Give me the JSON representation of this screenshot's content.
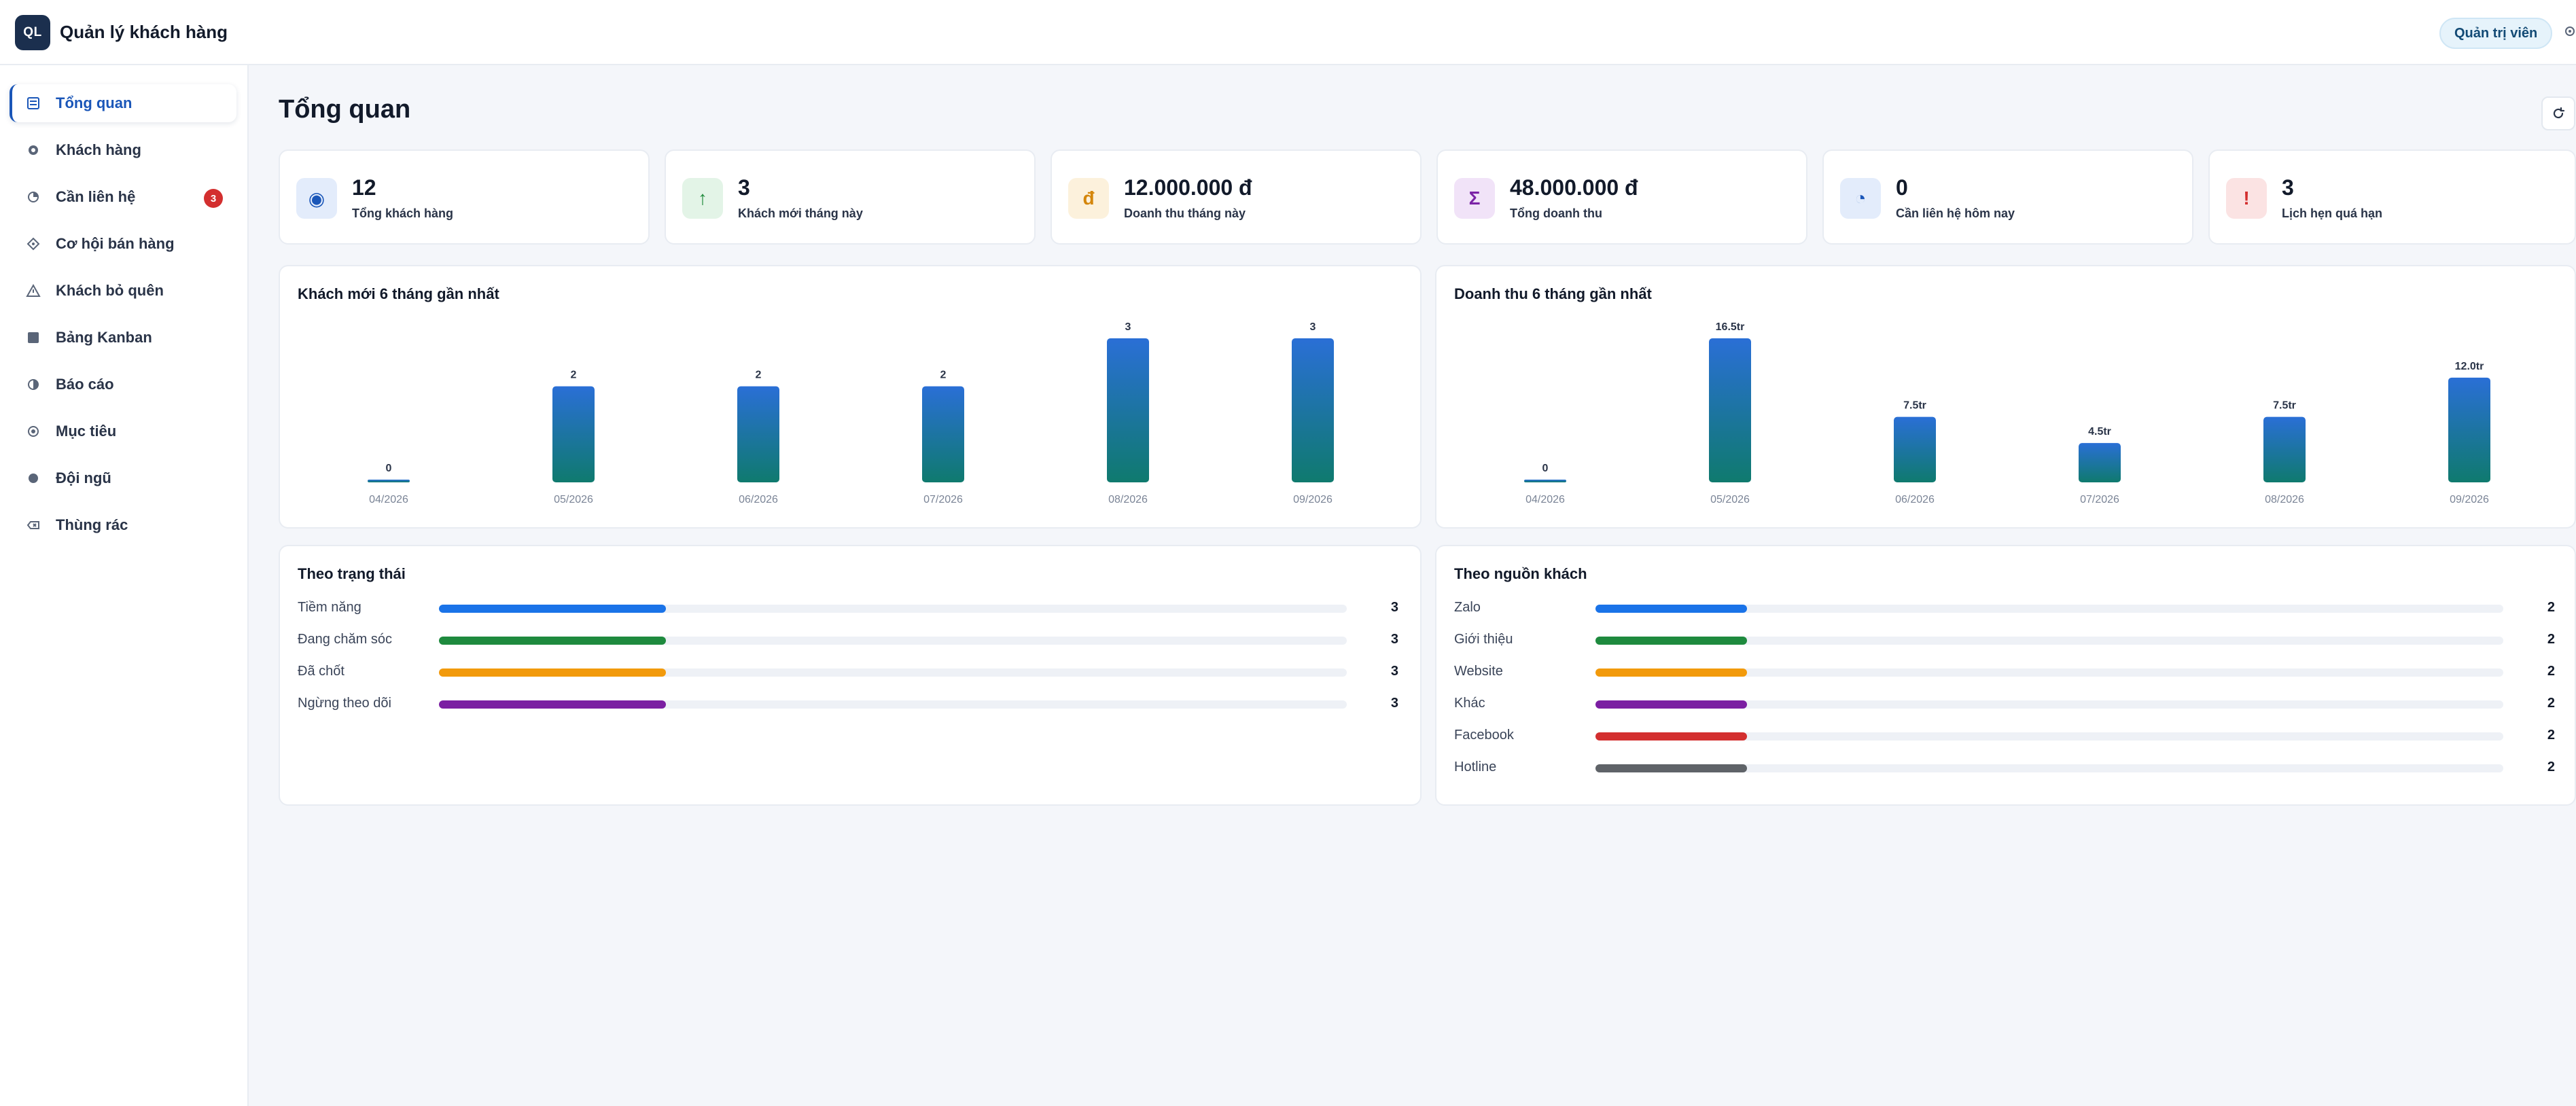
{
  "header": {
    "logo": "QL",
    "title": "Quản lý khách hàng",
    "role": "Quản trị viên"
  },
  "sidebar": {
    "items": [
      {
        "label": "Tổng quan",
        "icon": "dashboard-icon",
        "active": true
      },
      {
        "label": "Khách hàng",
        "icon": "users-icon"
      },
      {
        "label": "Cần liên hệ",
        "icon": "clock-icon",
        "badge": "3"
      },
      {
        "label": "Cơ hội bán hàng",
        "icon": "diamond-icon"
      },
      {
        "label": "Khách bỏ quên",
        "icon": "warning-icon"
      },
      {
        "label": "Bảng Kanban",
        "icon": "kanban-icon"
      },
      {
        "label": "Báo cáo",
        "icon": "report-icon"
      },
      {
        "label": "Mục tiêu",
        "icon": "target-icon"
      },
      {
        "label": "Đội ngũ",
        "icon": "team-icon"
      },
      {
        "label": "Thùng rác",
        "icon": "trash-icon"
      }
    ]
  },
  "main": {
    "title": "Tổng quan",
    "stats": [
      {
        "value": "12",
        "label": "Tổng khách hàng",
        "icon": "◉",
        "icon_name": "customers-icon",
        "color": "#1a56b8",
        "bg": "#e3ecfb"
      },
      {
        "value": "3",
        "label": "Khách mới tháng này",
        "icon": "↑",
        "icon_name": "arrow-up-icon",
        "color": "#1f8a3b",
        "bg": "#e3f4e7"
      },
      {
        "value": "12.000.000 đ",
        "label": "Doanh thu tháng này",
        "icon": "đ",
        "icon_name": "currency-icon",
        "color": "#d4860b",
        "bg": "#fcf1dc"
      },
      {
        "value": "48.000.000 đ",
        "label": "Tổng doanh thu",
        "icon": "Σ",
        "icon_name": "sum-icon",
        "color": "#7b23a6",
        "bg": "#f1e3f8"
      },
      {
        "value": "0",
        "label": "Cần liên hệ hôm nay",
        "icon": "◔",
        "icon_name": "clock-icon",
        "color": "#1a56b8",
        "bg": "#e3ecfb"
      },
      {
        "value": "3",
        "label": "Lịch hẹn quá hạn",
        "icon": "!",
        "icon_name": "alert-icon",
        "color": "#d32f2f",
        "bg": "#fbe3e3"
      }
    ],
    "status_panel": {
      "title": "Theo trạng thái",
      "max": 12,
      "rows": [
        {
          "label": "Tiềm năng",
          "value": 3,
          "color": "#1a73e8"
        },
        {
          "label": "Đang chăm sóc",
          "value": 3,
          "color": "#1e8a3e"
        },
        {
          "label": "Đã chốt",
          "value": 3,
          "color": "#f29a0c"
        },
        {
          "label": "Ngừng theo dõi",
          "value": 3,
          "color": "#7b1fa2"
        }
      ]
    },
    "source_panel": {
      "title": "Theo nguồn khách",
      "max": 12,
      "rows": [
        {
          "label": "Zalo",
          "value": 2,
          "color": "#1a73e8"
        },
        {
          "label": "Giới thiệu",
          "value": 2,
          "color": "#1e8a3e"
        },
        {
          "label": "Website",
          "value": 2,
          "color": "#f29a0c"
        },
        {
          "label": "Khác",
          "value": 2,
          "color": "#7b1fa2"
        },
        {
          "label": "Facebook",
          "value": 2,
          "color": "#d32f2f"
        },
        {
          "label": "Hotline",
          "value": 2,
          "color": "#5f6368"
        }
      ]
    }
  },
  "chart_data": [
    {
      "type": "bar",
      "title": "Khách mới 6 tháng gần nhất",
      "categories": [
        "04/2026",
        "05/2026",
        "06/2026",
        "07/2026",
        "08/2026",
        "09/2026"
      ],
      "values": [
        0,
        2,
        2,
        2,
        3,
        3
      ],
      "labels": [
        "0",
        "2",
        "2",
        "2",
        "3",
        "3"
      ],
      "ylim": [
        0,
        3
      ]
    },
    {
      "type": "bar",
      "title": "Doanh thu 6 tháng gần nhất",
      "categories": [
        "04/2026",
        "05/2026",
        "06/2026",
        "07/2026",
        "08/2026",
        "09/2026"
      ],
      "values": [
        0,
        16.5,
        7.5,
        4.5,
        7.5,
        12.0
      ],
      "labels": [
        "0",
        "16.5tr",
        "7.5tr",
        "4.5tr",
        "7.5tr",
        "12.0tr"
      ],
      "ylim": [
        0,
        16.5
      ]
    }
  ]
}
